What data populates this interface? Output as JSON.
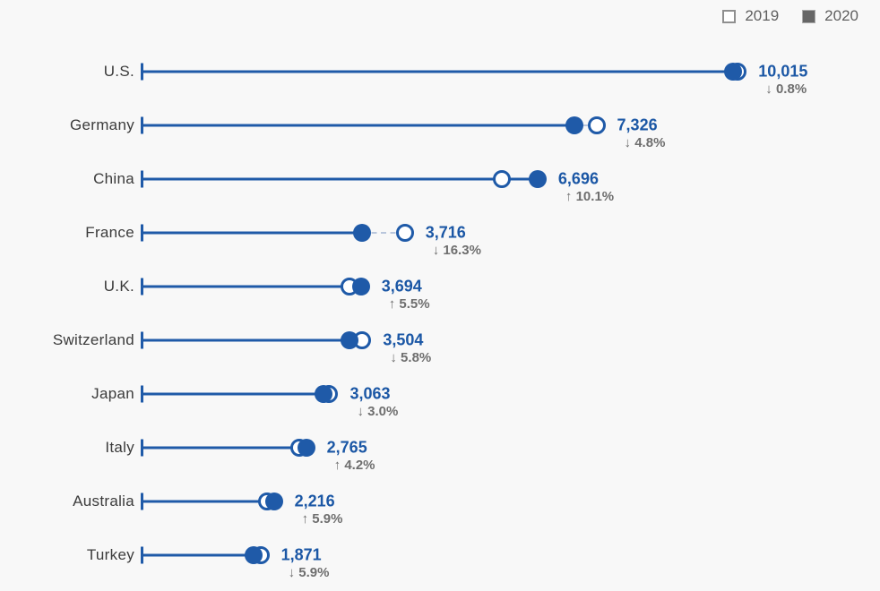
{
  "legend": {
    "items": [
      {
        "label": "2019",
        "swatch": "open"
      },
      {
        "label": "2020",
        "swatch": "filled"
      }
    ],
    "position": "top-right"
  },
  "colors": {
    "accent_blue": "#1f5aa8",
    "value_text": "#1b57a5",
    "category_text": "#3b3b3b",
    "change_text": "#6e6e6e",
    "dash_connector": "#b9c6dc",
    "legend_2019_fill": "#ffffff",
    "legend_2019_border": "#8f8f8f",
    "legend_2020_fill": "#666666",
    "background": "#f8f8f8"
  },
  "chart_data": {
    "type": "dumbbell",
    "title": "",
    "xlabel": "",
    "ylabel": "",
    "grid": false,
    "legend_position": "top-right",
    "xlim": [
      0,
      12500
    ],
    "categories": [
      "U.S.",
      "Germany",
      "China",
      "France",
      "U.K.",
      "Switzerland",
      "Japan",
      "Italy",
      "Australia",
      "Turkey"
    ],
    "series": [
      {
        "name": "2019",
        "marker": "open-circle",
        "values": [
          10096,
          7695,
          6082,
          4440,
          3501,
          3720,
          3158,
          2654,
          2093,
          1988
        ]
      },
      {
        "name": "2020",
        "marker": "filled-circle",
        "values": [
          10015,
          7326,
          6696,
          3716,
          3694,
          3504,
          3063,
          2765,
          2216,
          1871
        ]
      }
    ],
    "value_labels": [
      "10,015",
      "7,326",
      "6,696",
      "3,716",
      "3,694",
      "3,504",
      "3,063",
      "2,765",
      "2,216",
      "1,871"
    ],
    "changes_pct": [
      -0.8,
      -4.8,
      10.1,
      -16.3,
      5.5,
      -5.8,
      -3.0,
      4.2,
      5.9,
      -5.9
    ],
    "change_labels": [
      "↓ 0.8%",
      "↓ 4.8%",
      "↑ 10.1%",
      "↓ 16.3%",
      "↑ 5.5%",
      "↓ 5.8%",
      "↓ 3.0%",
      "↑ 4.2%",
      "↑ 5.9%",
      "↓ 5.9%"
    ]
  }
}
